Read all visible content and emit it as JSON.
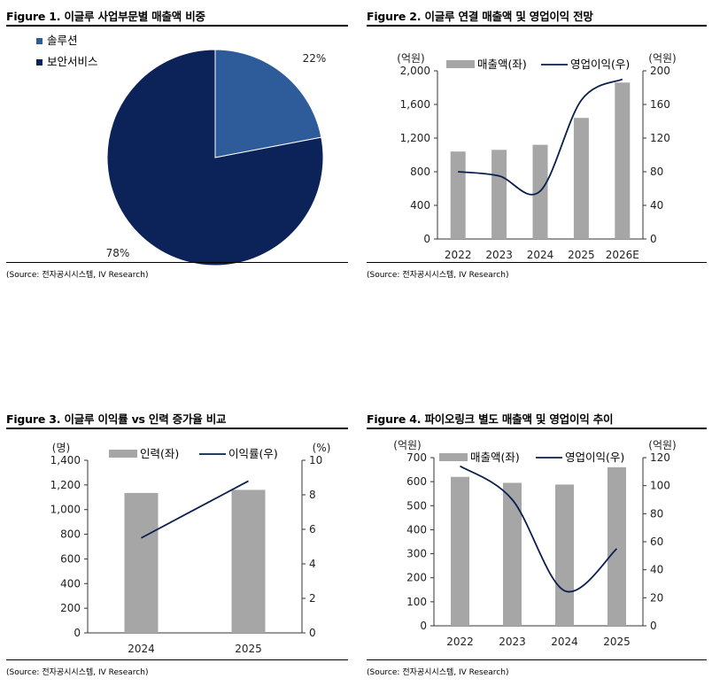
{
  "figures": [
    {
      "title": "Figure 1. 이글루 사업부문별 매출액 비중",
      "source": "(Source: 전자공시시스템, IV Research)"
    },
    {
      "title": "Figure 2. 이글루 연결 매출액 및 영업이익 전망",
      "source": "(Source: 전자공시시스템, IV Research)"
    },
    {
      "title": "Figure 3. 이글루 이익률 vs 인력 증가율 비교",
      "source": "(Source: 전자공시시스템, IV Research)"
    },
    {
      "title": "Figure 4. 파이오링크 별도 매출액 및 영업이익 추이",
      "source": "(Source: 전자공시시스템, IV Research)"
    }
  ],
  "chart_data": [
    {
      "type": "pie",
      "title": "Figure 1. 이글루 사업부문별 매출액 비중",
      "slices": [
        {
          "name": "솔루션",
          "value": 22,
          "label": "22%",
          "color": "#2E5C9A"
        },
        {
          "name": "보안서비스",
          "value": 78,
          "label": "78%",
          "color": "#0B2359"
        }
      ],
      "legend": "top-left"
    },
    {
      "type": "bar",
      "title": "Figure 2. 이글루 연결 매출액 및 영업이익 전망",
      "categories": [
        "2022",
        "2023",
        "2024",
        "2025",
        "2026E"
      ],
      "series": [
        {
          "name": "매출액(좌)",
          "type": "bar",
          "axis": "left",
          "values": [
            1040,
            1060,
            1120,
            1440,
            1860
          ],
          "color": "#A6A6A6"
        },
        {
          "name": "영업이익(우)",
          "type": "line",
          "axis": "right",
          "values": [
            80,
            75,
            57,
            165,
            190
          ],
          "color": "#0B1F4D"
        }
      ],
      "ylabel_left": "(억원)",
      "ylabel_right": "(억원)",
      "ylim_left": [
        0,
        2000
      ],
      "yticks_left": [
        "0",
        "400",
        "800",
        "1,200",
        "1,600",
        "2,000"
      ],
      "ytick_values_left": [
        0,
        400,
        800,
        1200,
        1600,
        2000
      ],
      "ylim_right": [
        0,
        200
      ],
      "yticks_right": [
        "0",
        "40",
        "80",
        "120",
        "160",
        "200"
      ],
      "ytick_values_right": [
        0,
        40,
        80,
        120,
        160,
        200
      ],
      "legend": "top"
    },
    {
      "type": "bar",
      "title": "Figure 3. 이글루 이익률 vs 인력 증가율 비교",
      "categories": [
        "2024",
        "2025"
      ],
      "series": [
        {
          "name": "인력(좌)",
          "type": "bar",
          "axis": "left",
          "values": [
            1135,
            1160
          ],
          "color": "#A6A6A6"
        },
        {
          "name": "이익률(우)",
          "type": "line",
          "axis": "right",
          "values": [
            5.5,
            8.8
          ],
          "color": "#0B1F4D"
        }
      ],
      "ylabel_left": "(명)",
      "ylabel_right": "(%)",
      "ylim_left": [
        0,
        1400
      ],
      "yticks_left": [
        "0",
        "200",
        "400",
        "600",
        "800",
        "1,000",
        "1,200",
        "1,400"
      ],
      "ytick_values_left": [
        0,
        200,
        400,
        600,
        800,
        1000,
        1200,
        1400
      ],
      "ylim_right": [
        0,
        10
      ],
      "yticks_right": [
        "0",
        "2",
        "4",
        "6",
        "8",
        "10"
      ],
      "ytick_values_right": [
        0,
        2,
        4,
        6,
        8,
        10
      ],
      "legend": "top"
    },
    {
      "type": "bar",
      "title": "Figure 4. 파이오링크 별도 매출액 및 영업이익 추이",
      "categories": [
        "2022",
        "2023",
        "2024",
        "2025"
      ],
      "series": [
        {
          "name": "매출액(좌)",
          "type": "bar",
          "axis": "left",
          "values": [
            620,
            595,
            588,
            660
          ],
          "color": "#A6A6A6"
        },
        {
          "name": "영업이익(우)",
          "type": "line",
          "axis": "right",
          "values": [
            114,
            90,
            25,
            55
          ],
          "color": "#0B1F4D"
        }
      ],
      "ylabel_left": "(억원)",
      "ylabel_right": "(억원)",
      "ylim_left": [
        0,
        700
      ],
      "yticks_left": [
        "0",
        "100",
        "200",
        "300",
        "400",
        "500",
        "600",
        "700"
      ],
      "ytick_values_left": [
        0,
        100,
        200,
        300,
        400,
        500,
        600,
        700
      ],
      "ylim_right": [
        0,
        120
      ],
      "yticks_right": [
        "0",
        "20",
        "40",
        "60",
        "80",
        "100",
        "120"
      ],
      "ytick_values_right": [
        0,
        20,
        40,
        60,
        80,
        100,
        120
      ],
      "legend": "top"
    }
  ]
}
